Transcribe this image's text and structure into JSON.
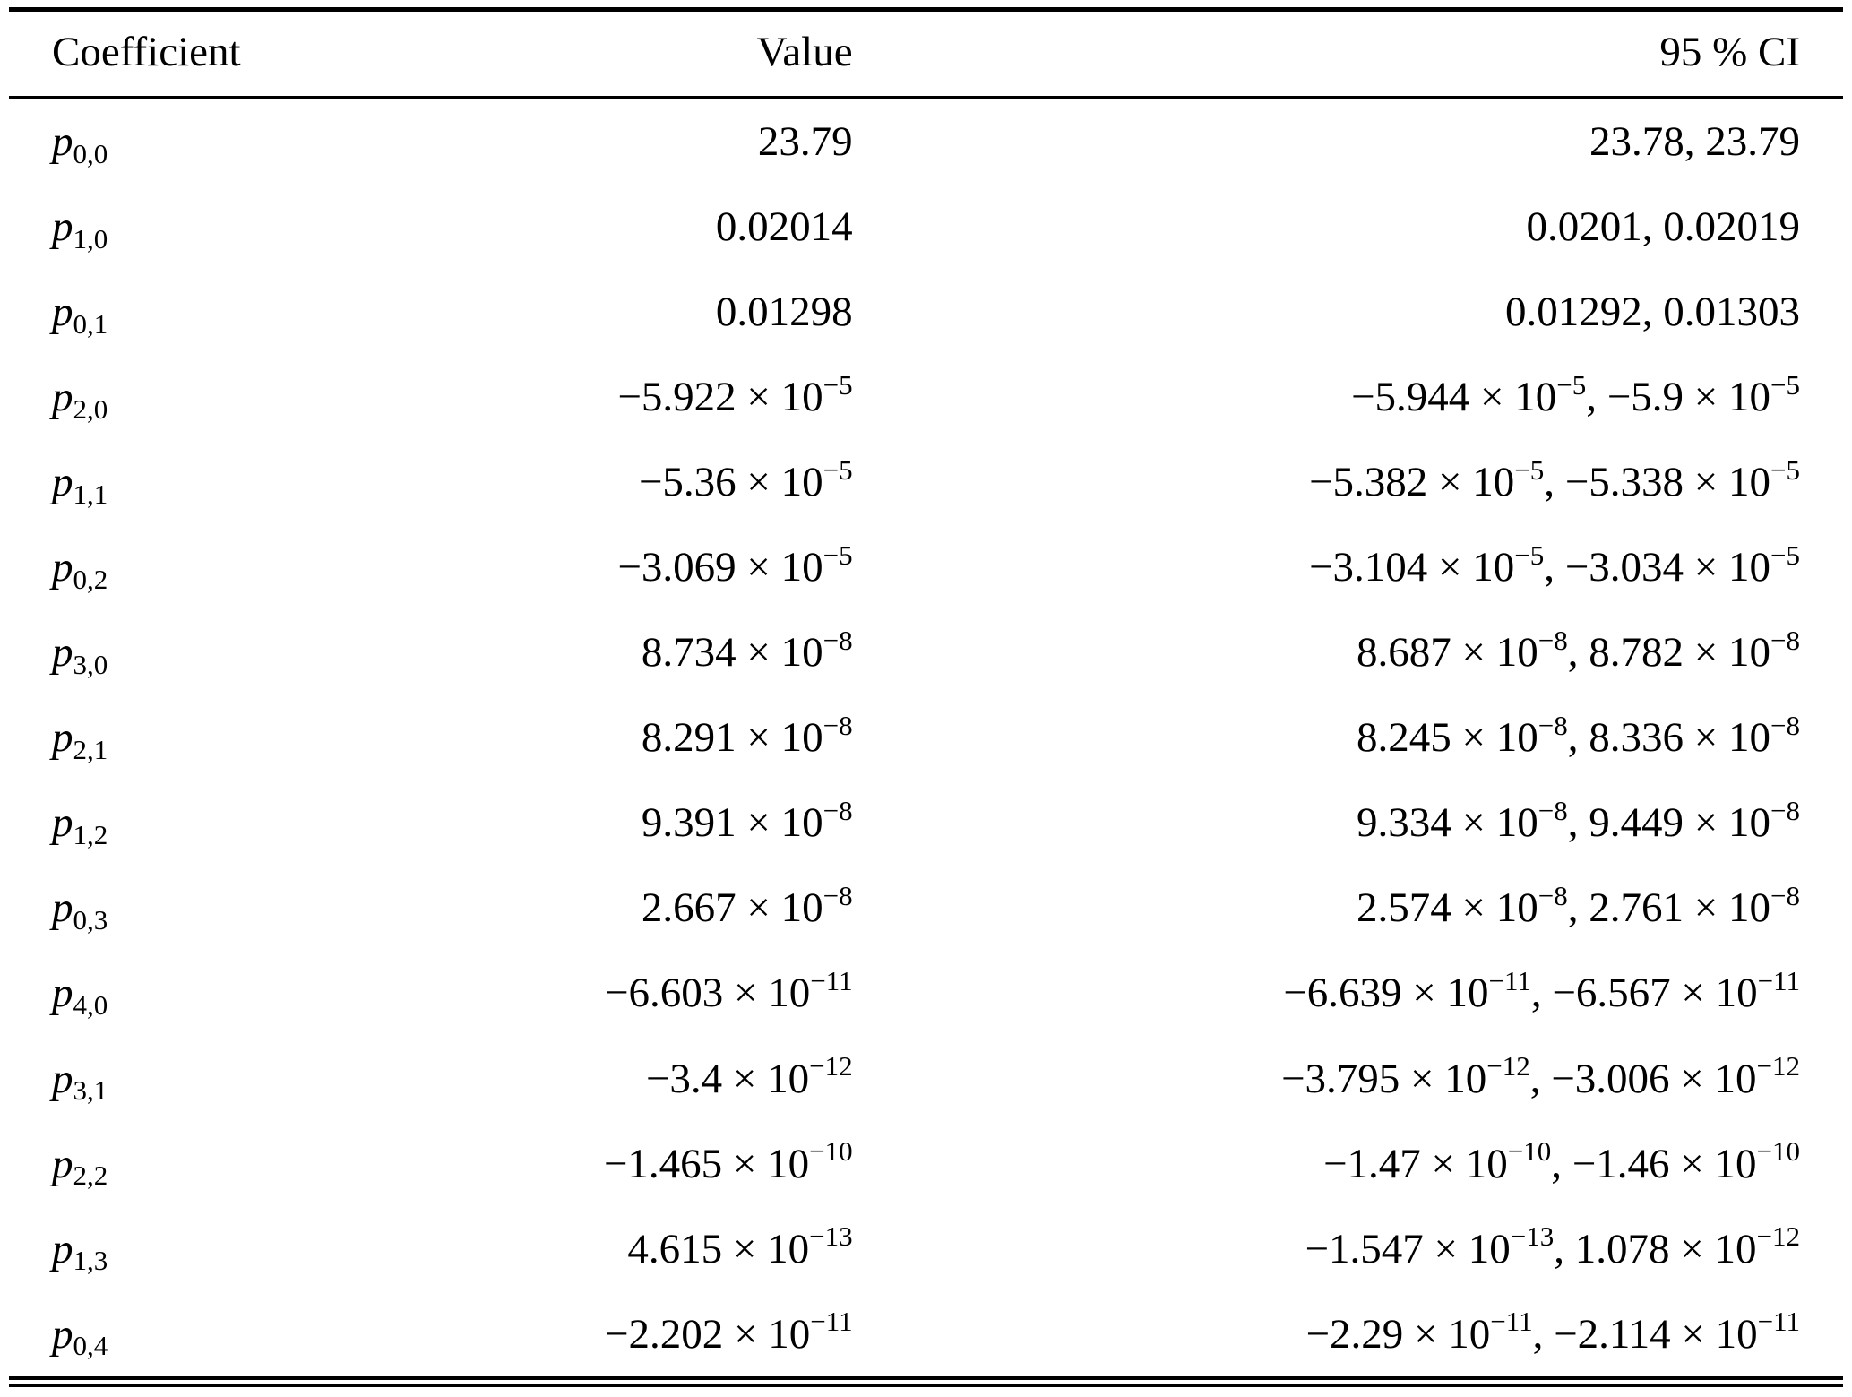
{
  "table": {
    "headers": {
      "coefficient": "Coefficient",
      "value": "Value",
      "ci": "95 % CI"
    },
    "rows": [
      {
        "coefficient": "p_{0,0}",
        "value": "23.79",
        "ci": "23.78, 23.79"
      },
      {
        "coefficient": "p_{1,0}",
        "value": "0.02014",
        "ci": "0.0201, 0.02019"
      },
      {
        "coefficient": "p_{0,1}",
        "value": "0.01298",
        "ci": "0.01292, 0.01303"
      },
      {
        "coefficient": "p_{2,0}",
        "value": "−5.922 × 10^{−5}",
        "ci": "−5.944 × 10^{−5}, −5.9 × 10^{−5}"
      },
      {
        "coefficient": "p_{1,1}",
        "value": "−5.36 × 10^{−5}",
        "ci": "−5.382 × 10^{−5}, −5.338 × 10^{−5}"
      },
      {
        "coefficient": "p_{0,2}",
        "value": "−3.069 × 10^{−5}",
        "ci": "−3.104 × 10^{−5}, −3.034 × 10^{−5}"
      },
      {
        "coefficient": "p_{3,0}",
        "value": "8.734 × 10^{−8}",
        "ci": "8.687 × 10^{−8}, 8.782 × 10^{−8}"
      },
      {
        "coefficient": "p_{2,1}",
        "value": "8.291 × 10^{−8}",
        "ci": "8.245 × 10^{−8}, 8.336 × 10^{−8}"
      },
      {
        "coefficient": "p_{1,2}",
        "value": "9.391 × 10^{−8}",
        "ci": "9.334 × 10^{−8}, 9.449 × 10^{−8}"
      },
      {
        "coefficient": "p_{0,3}",
        "value": "2.667 × 10^{−8}",
        "ci": "2.574 × 10^{−8}, 2.761 × 10^{−8}"
      },
      {
        "coefficient": "p_{4,0}",
        "value": "−6.603 × 10^{−11}",
        "ci": "−6.639 × 10^{−11}, −6.567 × 10^{−11}"
      },
      {
        "coefficient": "p_{3,1}",
        "value": "−3.4 × 10^{−12}",
        "ci": "−3.795 × 10^{−12}, −3.006 × 10^{−12}"
      },
      {
        "coefficient": "p_{2,2}",
        "value": "−1.465 × 10^{−10}",
        "ci": "−1.47 × 10^{−10}, −1.46 × 10^{−10}"
      },
      {
        "coefficient": "p_{1,3}",
        "value": "4.615 × 10^{−13}",
        "ci": "−1.547 × 10^{−13}, 1.078 × 10^{−12}"
      },
      {
        "coefficient": "p_{0,4}",
        "value": "−2.202 × 10^{−11}",
        "ci": "−2.29 × 10^{−11}, −2.114 × 10^{−11}"
      }
    ]
  }
}
